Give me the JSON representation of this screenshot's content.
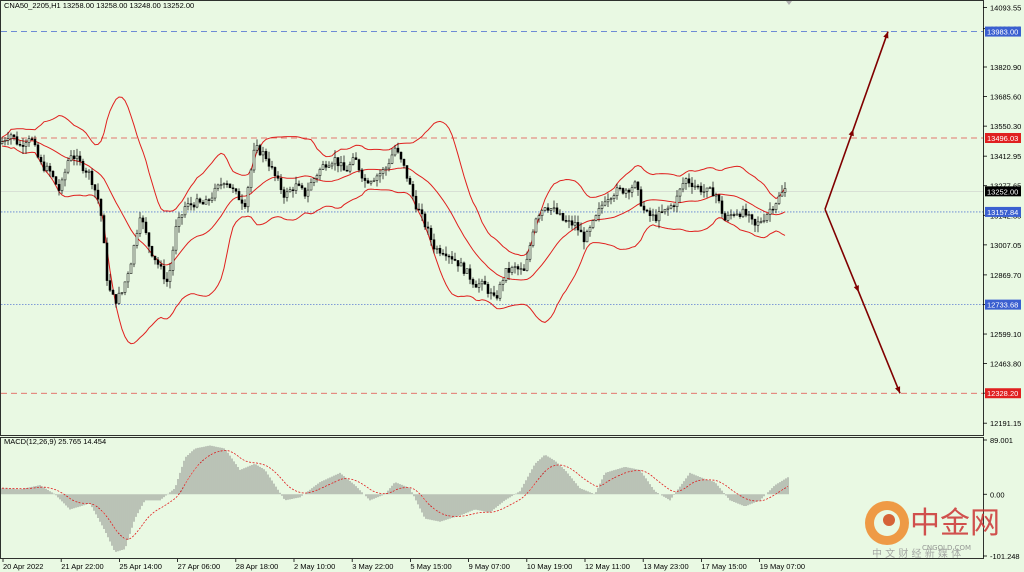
{
  "chart_data": [
    {
      "type": "candlestick",
      "title": "CNA50_2205,H1  13258.00 13258.00 13248.00 13252.00",
      "y_ticks": [
        "14093.55",
        "13996.20",
        "13820.90",
        "13685.60",
        "13550.30",
        "13412.95",
        "13277.65",
        "13142.35",
        "13007.05",
        "12869.70",
        "12734.40",
        "12599.10",
        "12463.80",
        "12328.50",
        "12191.15"
      ],
      "ylim": [
        12160,
        14100
      ],
      "price_tags": [
        {
          "value": 13983.0,
          "label": "13983.00",
          "color": "#3a5fd0",
          "line": "dash"
        },
        {
          "value": 13496.03,
          "label": "13496.03",
          "color": "#e02020",
          "line": "dash"
        },
        {
          "value": 13252.0,
          "label": "13252.00",
          "color": "#000000",
          "line": "none"
        },
        {
          "value": 13157.84,
          "label": "13157.84",
          "color": "#3a5fd0",
          "line": "dot"
        },
        {
          "value": 12733.68,
          "label": "12733.68",
          "color": "#3a5fd0",
          "line": "dot"
        },
        {
          "value": 12328.2,
          "label": "12328.20",
          "color": "#e02020",
          "line": "dash"
        }
      ],
      "x_labels": [
        "20 Apr 2022",
        "21 Apr 22:00",
        "25 Apr 14:00",
        "27 Apr 06:00",
        "28 Apr 18:00",
        "2 May 10:00",
        "3 May 22:00",
        "5 May 15:00",
        "9 May 07:00",
        "10 May 19:00",
        "12 May 11:00",
        "13 May 23:00",
        "17 May 15:00",
        "19 May 07:00"
      ],
      "bollinger_color": "#e0201e",
      "candle_color": "#000000",
      "price_path": [
        [
          0,
          13470
        ],
        [
          10,
          13520
        ],
        [
          20,
          13460
        ],
        [
          30,
          13510
        ],
        [
          40,
          13380
        ],
        [
          50,
          13340
        ],
        [
          60,
          13250
        ],
        [
          70,
          13430
        ],
        [
          80,
          13380
        ],
        [
          90,
          13330
        ],
        [
          100,
          13190
        ],
        [
          108,
          12810
        ],
        [
          115,
          12750
        ],
        [
          122,
          12790
        ],
        [
          132,
          12950
        ],
        [
          140,
          13150
        ],
        [
          150,
          12990
        ],
        [
          158,
          12920
        ],
        [
          168,
          12830
        ],
        [
          176,
          13080
        ],
        [
          185,
          13180
        ],
        [
          195,
          13200
        ],
        [
          205,
          13190
        ],
        [
          215,
          13250
        ],
        [
          225,
          13310
        ],
        [
          235,
          13240
        ],
        [
          245,
          13200
        ],
        [
          255,
          13450
        ],
        [
          265,
          13420
        ],
        [
          275,
          13320
        ],
        [
          285,
          13230
        ],
        [
          295,
          13280
        ],
        [
          305,
          13240
        ],
        [
          315,
          13320
        ],
        [
          325,
          13380
        ],
        [
          335,
          13400
        ],
        [
          345,
          13340
        ],
        [
          355,
          13400
        ],
        [
          365,
          13300
        ],
        [
          375,
          13320
        ],
        [
          385,
          13350
        ],
        [
          395,
          13450
        ],
        [
          405,
          13350
        ],
        [
          415,
          13200
        ],
        [
          425,
          13100
        ],
        [
          435,
          12990
        ],
        [
          445,
          12980
        ],
        [
          455,
          12940
        ],
        [
          465,
          12890
        ],
        [
          475,
          12830
        ],
        [
          485,
          12820
        ],
        [
          495,
          12750
        ],
        [
          505,
          12880
        ],
        [
          515,
          12900
        ],
        [
          525,
          12880
        ],
        [
          535,
          13130
        ],
        [
          545,
          13190
        ],
        [
          555,
          13160
        ],
        [
          565,
          13110
        ],
        [
          575,
          13100
        ],
        [
          585,
          13030
        ],
        [
          595,
          13120
        ],
        [
          605,
          13220
        ],
        [
          615,
          13250
        ],
        [
          625,
          13260
        ],
        [
          635,
          13280
        ],
        [
          645,
          13150
        ],
        [
          655,
          13130
        ],
        [
          665,
          13160
        ],
        [
          675,
          13200
        ],
        [
          685,
          13310
        ],
        [
          695,
          13280
        ],
        [
          705,
          13250
        ],
        [
          715,
          13250
        ],
        [
          725,
          13120
        ],
        [
          735,
          13160
        ],
        [
          745,
          13150
        ],
        [
          755,
          13090
        ],
        [
          765,
          13140
        ],
        [
          775,
          13200
        ],
        [
          785,
          13260
        ]
      ],
      "projections": [
        {
          "from": [
            825,
            13170
          ],
          "to": [
            888,
            13983
          ],
          "color": "#800000"
        },
        {
          "from": [
            825,
            13170
          ],
          "to": [
            900,
            12328
          ],
          "color": "#800000"
        }
      ]
    },
    {
      "type": "bar",
      "title": "MACD(12,26,9) 25.765 14.454",
      "y_ticks": [
        "89.001",
        "0.00",
        "-101.248"
      ],
      "ylim": [
        -101.248,
        89.001
      ],
      "macd_path": [
        [
          0,
          10
        ],
        [
          20,
          8
        ],
        [
          40,
          15
        ],
        [
          55,
          0
        ],
        [
          70,
          -25
        ],
        [
          90,
          -15
        ],
        [
          105,
          -60
        ],
        [
          115,
          -95
        ],
        [
          125,
          -90
        ],
        [
          135,
          -40
        ],
        [
          145,
          -10
        ],
        [
          160,
          -10
        ],
        [
          175,
          10
        ],
        [
          185,
          60
        ],
        [
          195,
          75
        ],
        [
          210,
          80
        ],
        [
          225,
          75
        ],
        [
          240,
          40
        ],
        [
          255,
          50
        ],
        [
          265,
          40
        ],
        [
          275,
          15
        ],
        [
          285,
          -10
        ],
        [
          300,
          -5
        ],
        [
          320,
          20
        ],
        [
          340,
          35
        ],
        [
          355,
          15
        ],
        [
          370,
          -10
        ],
        [
          385,
          0
        ],
        [
          395,
          20
        ],
        [
          410,
          10
        ],
        [
          425,
          -40
        ],
        [
          440,
          -45
        ],
        [
          460,
          -35
        ],
        [
          475,
          -25
        ],
        [
          490,
          -30
        ],
        [
          505,
          -10
        ],
        [
          520,
          5
        ],
        [
          535,
          50
        ],
        [
          545,
          65
        ],
        [
          555,
          55
        ],
        [
          565,
          40
        ],
        [
          580,
          10
        ],
        [
          595,
          0
        ],
        [
          605,
          35
        ],
        [
          625,
          45
        ],
        [
          640,
          40
        ],
        [
          655,
          5
        ],
        [
          670,
          -10
        ],
        [
          690,
          35
        ],
        [
          705,
          25
        ],
        [
          715,
          20
        ],
        [
          730,
          -10
        ],
        [
          745,
          -20
        ],
        [
          760,
          -10
        ],
        [
          775,
          15
        ],
        [
          788,
          28
        ]
      ]
    }
  ],
  "watermark": {
    "brand": "中金网",
    "domain": "CNGOLD.COM",
    "tagline": "中 文 财 经 新 媒 体"
  }
}
